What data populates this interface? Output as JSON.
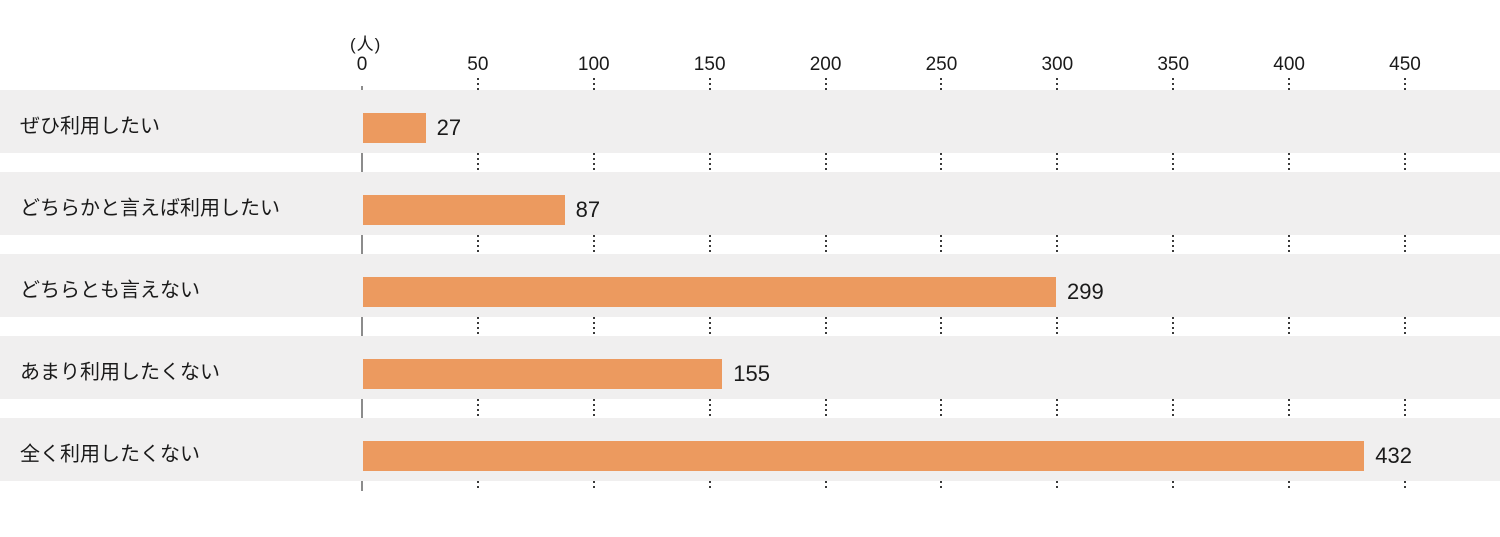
{
  "chart_data": {
    "type": "bar",
    "orientation": "horizontal",
    "unit_label": "(人)",
    "categories": [
      "ぜひ利用したい",
      "どちらかと言えば利用したい",
      "どちらとも言えない",
      "あまり利用したくない",
      "全く利用したくない"
    ],
    "values": [
      27,
      87,
      299,
      155,
      432
    ],
    "xlim": [
      0,
      450
    ],
    "ticks": [
      0,
      50,
      100,
      150,
      200,
      250,
      300,
      350,
      400,
      450
    ],
    "grid": "dotted-vertical-between-rows",
    "legend": "none",
    "colors": {
      "bar": "#ec9a5f",
      "row_band": "#f0efef",
      "axis_line": "#8c8c8c",
      "gridline": "#3a3a3a",
      "text": "#1a1a1a",
      "background": "#ffffff"
    }
  }
}
